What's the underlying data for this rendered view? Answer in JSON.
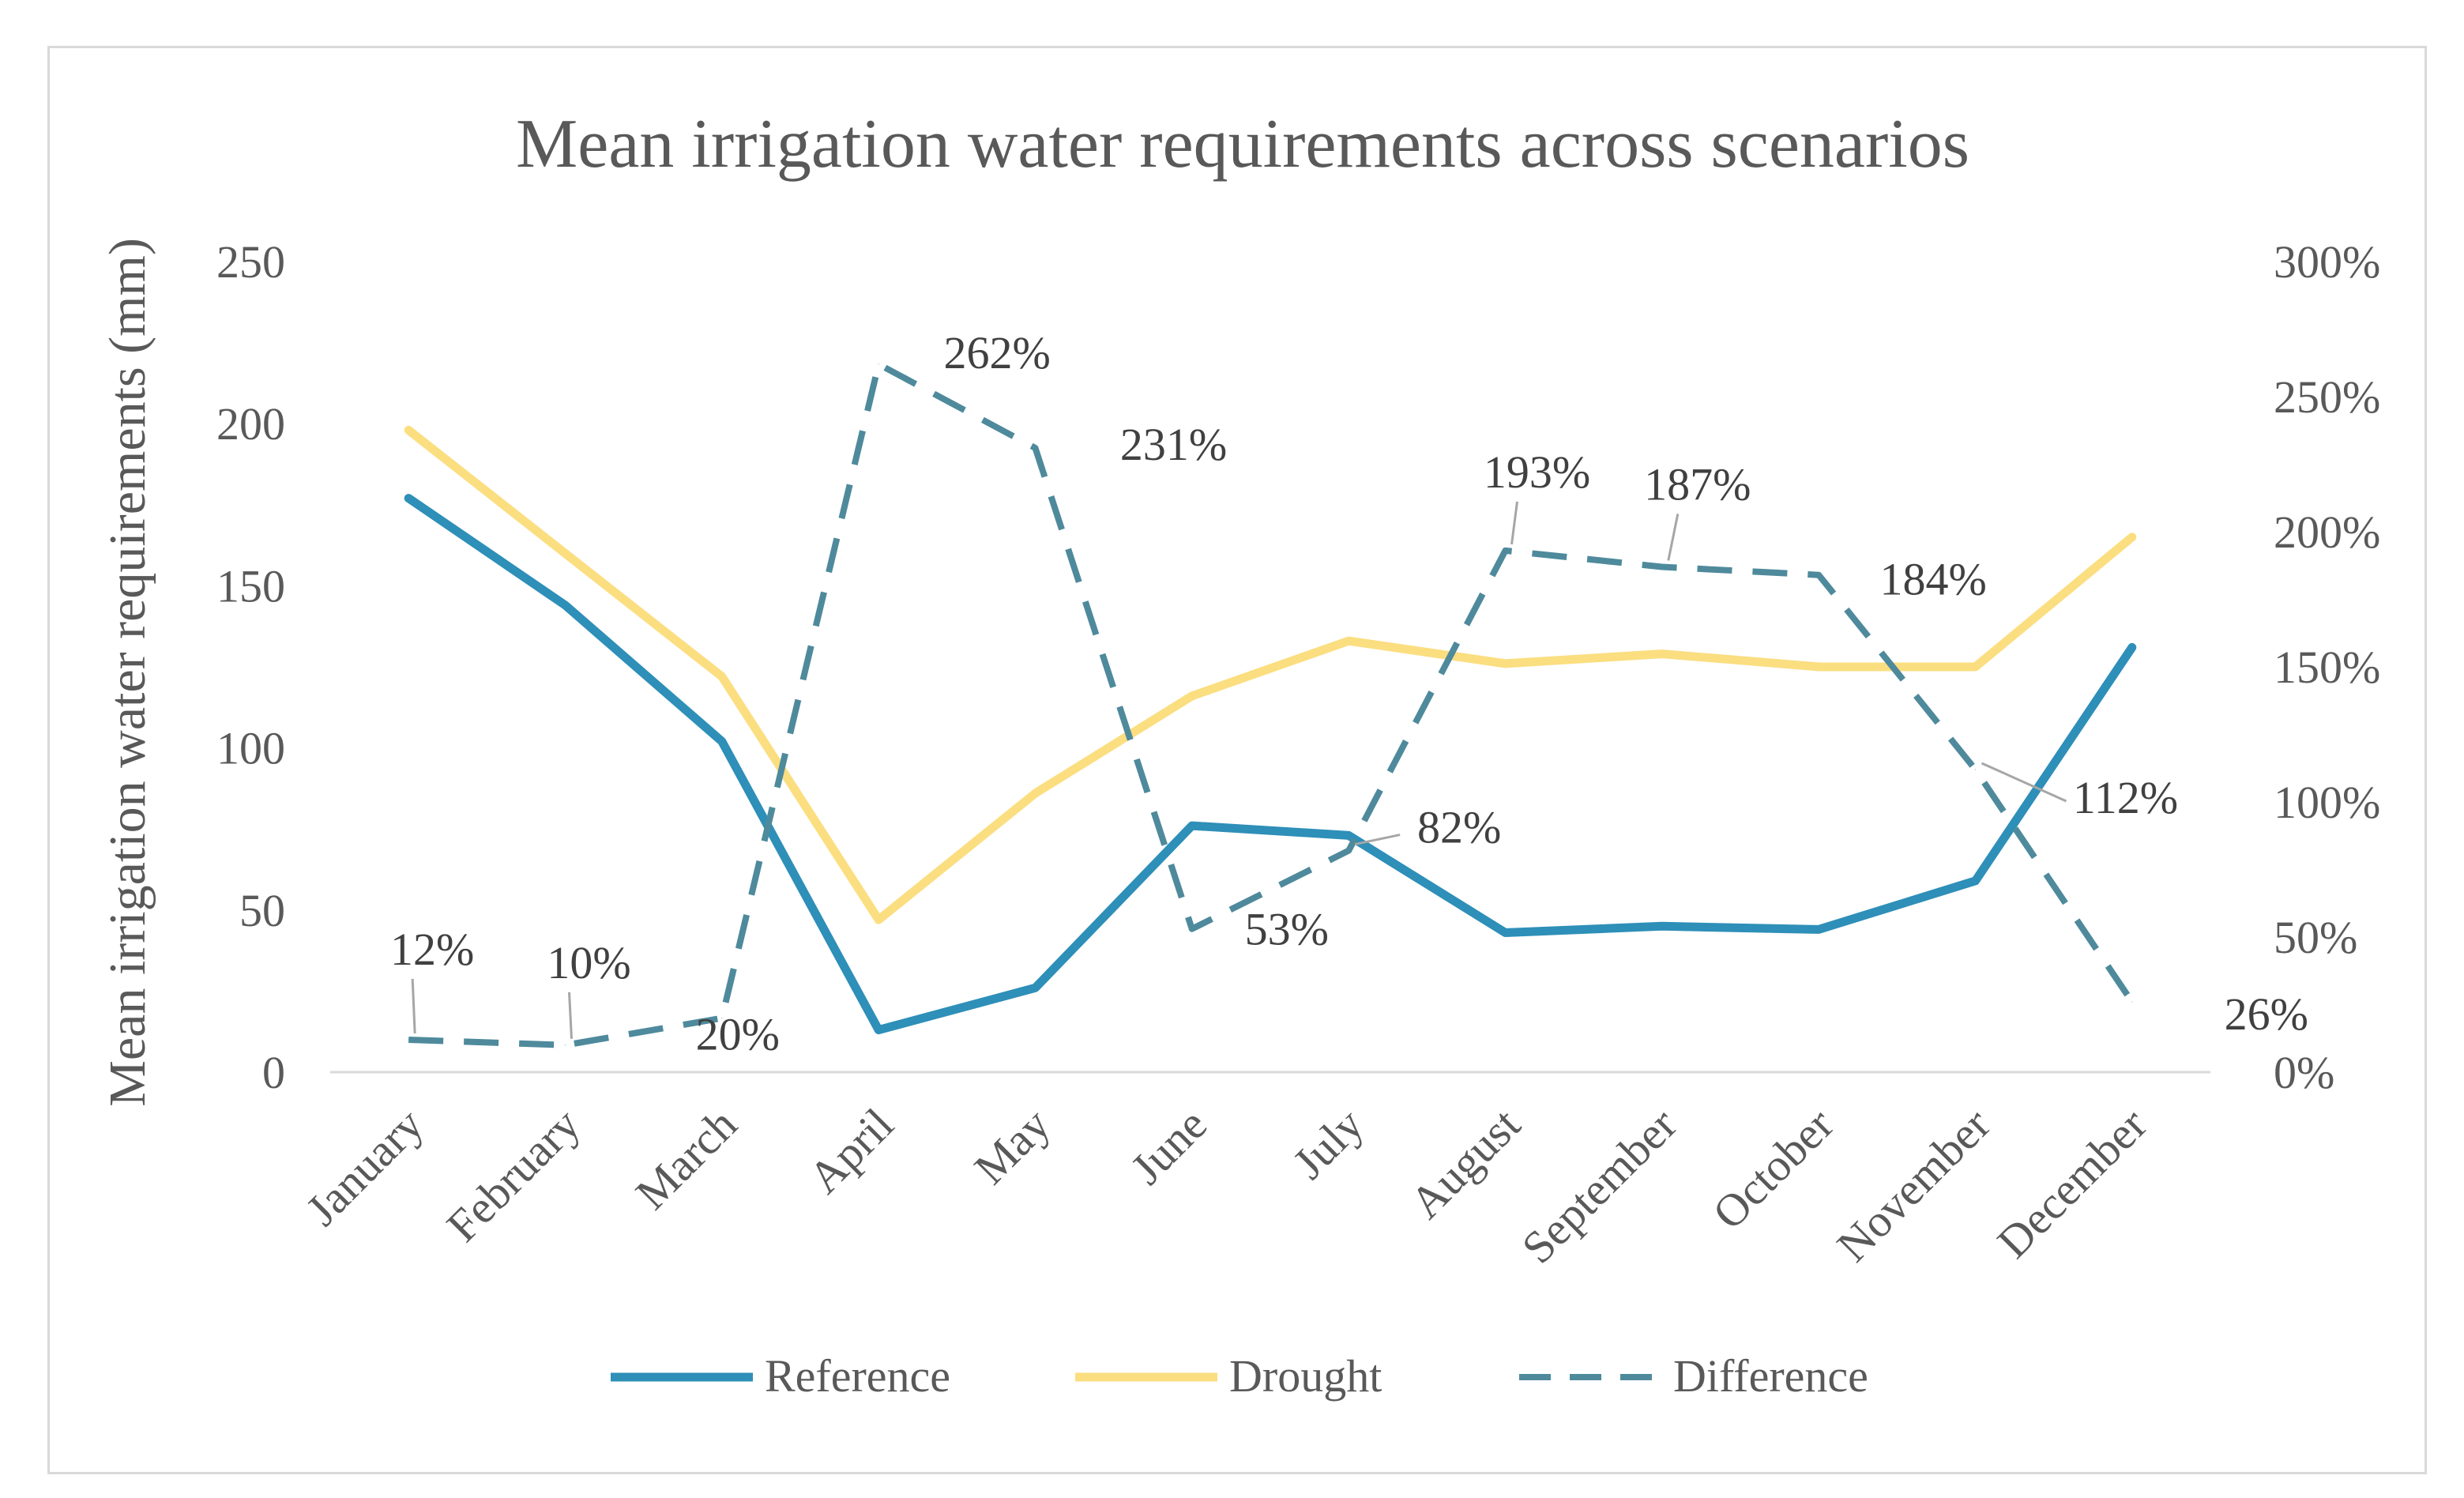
{
  "chart_data": {
    "type": "line",
    "title": "Mean irrigation water requirements across scenarios",
    "ylabel": "Mean irrigation water requirements (mm)",
    "y2label": "",
    "xlabel": "",
    "categories": [
      "January",
      "February",
      "March",
      "April",
      "May",
      "June",
      "July",
      "August",
      "September",
      "October",
      "November",
      "December"
    ],
    "ylim": [
      0,
      250
    ],
    "y_ticks": [
      "0",
      "50",
      "100",
      "150",
      "200",
      "250"
    ],
    "y_tick_values": [
      0,
      50,
      100,
      150,
      200,
      250
    ],
    "y2lim": [
      0,
      300
    ],
    "y2_ticks": [
      "0%",
      "50%",
      "100%",
      "150%",
      "200%",
      "250%",
      "300%"
    ],
    "y2_tick_values": [
      0,
      50,
      100,
      150,
      200,
      250,
      300
    ],
    "series": [
      {
        "name": "Reference",
        "axis": "left",
        "color": "#2e8fb8",
        "style": "solid",
        "values": [
          177,
          144,
          102,
          13,
          26,
          76,
          73,
          43,
          45,
          44,
          59,
          131
        ]
      },
      {
        "name": "Drought",
        "axis": "left",
        "color": "#fbde80",
        "style": "solid",
        "values": [
          198,
          160,
          122,
          47,
          86,
          116,
          133,
          126,
          129,
          125,
          125,
          165
        ]
      },
      {
        "name": "Difference",
        "axis": "right",
        "color": "#4e8a9c",
        "style": "dashed",
        "values": [
          12,
          10,
          20,
          262,
          231,
          53,
          82,
          193,
          187,
          184,
          112,
          26
        ],
        "labels": [
          "12%",
          "10%",
          "20%",
          "262%",
          "231%",
          "53%",
          "82%",
          "193%",
          "187%",
          "184%",
          "112%",
          "26%"
        ]
      }
    ],
    "legend": [
      "Reference",
      "Drought",
      "Difference"
    ],
    "legend_position": "bottom",
    "grid": false
  },
  "colors": {
    "axis": "#d9d9d9",
    "text": "#595959",
    "leader": "#a6a6a6"
  }
}
